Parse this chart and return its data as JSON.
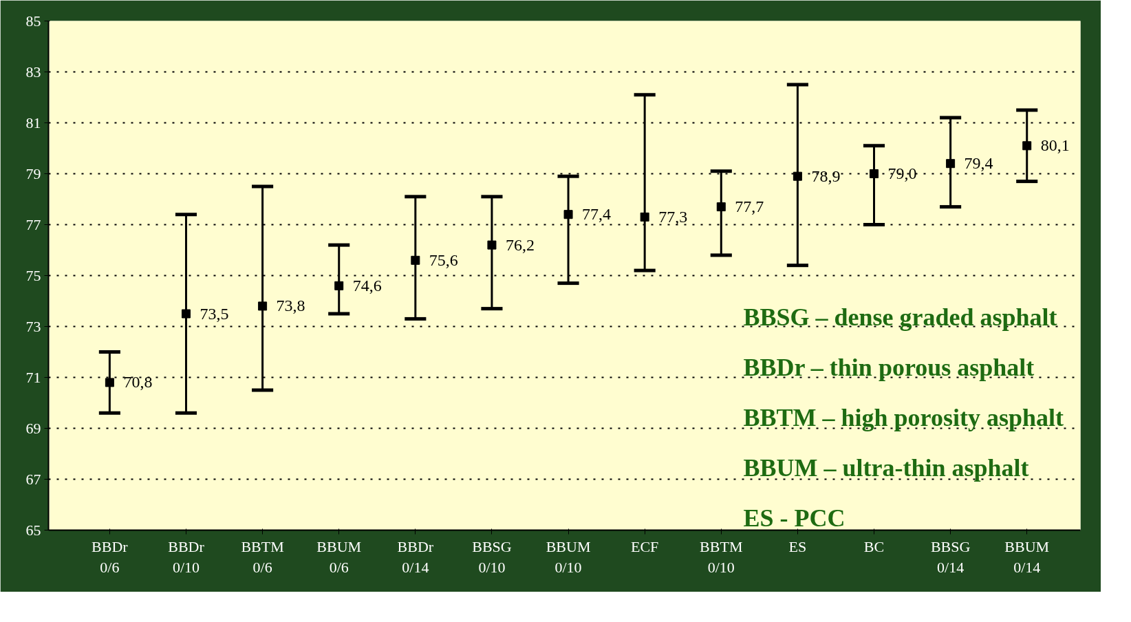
{
  "chart_data": {
    "type": "scatter",
    "categories": [
      "BBDr\n0/6",
      "BBDr\n0/10",
      "BBTM\n0/6",
      "BBUM\n0/6",
      "BBDr\n0/14",
      "BBSG\n0/10",
      "BBUM\n0/10",
      "ECF",
      "BBTM\n0/10",
      "ES",
      "BC",
      "BBSG\n0/14",
      "BBUM\n0/14"
    ],
    "values": [
      70.8,
      73.5,
      73.8,
      74.6,
      75.6,
      76.2,
      77.4,
      77.3,
      77.7,
      78.9,
      79.0,
      79.4,
      80.1
    ],
    "errors": [
      [
        69.6,
        72.0
      ],
      [
        69.6,
        77.4
      ],
      [
        70.5,
        78.5
      ],
      [
        73.5,
        76.2
      ],
      [
        73.3,
        78.1
      ],
      [
        73.7,
        78.1
      ],
      [
        74.7,
        78.9
      ],
      [
        75.2,
        82.1
      ],
      [
        75.8,
        79.1
      ],
      [
        75.4,
        82.5
      ],
      [
        77.0,
        80.1
      ],
      [
        77.7,
        81.2
      ],
      [
        78.7,
        81.5
      ]
    ],
    "value_labels": [
      "70,8",
      "73,5",
      "73,8",
      "74,6",
      "75,6",
      "76,2",
      "77,4",
      "77,3",
      "77,7",
      "78,9",
      "79,0",
      "79,4",
      "80,1"
    ],
    "color": "#000000",
    "marker": "square",
    "ylim": [
      65,
      85
    ],
    "yticks": [
      65,
      67,
      69,
      71,
      73,
      75,
      77,
      79,
      81,
      83,
      85
    ],
    "grid": "y",
    "annotations": [
      "BBSG – dense graded asphalt",
      "BBDr – thin porous asphalt",
      "BBTM – high porosity asphalt",
      "BBUM – ultra-thin asphalt",
      "ES - PCC"
    ]
  }
}
